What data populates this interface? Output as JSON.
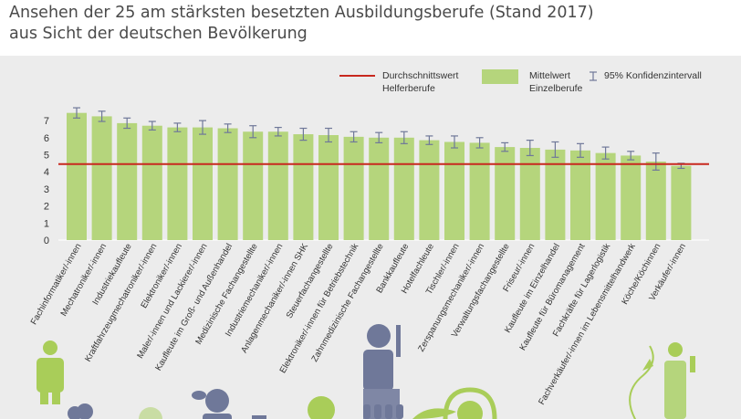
{
  "header": {
    "title_line1": "Ansehen der 25 am stärksten besetzten Ausbildungsberufe (Stand 2017)",
    "title_line2": "aus Sicht der deutschen Bevölkerung"
  },
  "legend": {
    "reference": {
      "line1": "Durchschnittswert",
      "line2": "Helferberufe"
    },
    "mean": {
      "line1": "Mittelwert",
      "line2": "Einzelberufe"
    },
    "ci": {
      "label": "95% Konfidenzintervall"
    }
  },
  "colors": {
    "bar": "#b5d57c",
    "reference_line": "#c8281e",
    "error_bar": "#6f7899",
    "panel_background": "#ececec",
    "text": "#333333",
    "icon_green": "#a9cd59",
    "icon_blue": "#6f7899"
  },
  "chart_data": {
    "type": "bar",
    "title": "Ansehen der 25 am stärksten besetzten Ausbildungsberufe (Stand 2017) aus Sicht der deutschen Bevölkerung",
    "xlabel": "",
    "ylabel": "",
    "ylim": [
      0,
      8
    ],
    "yticks": [
      0,
      1,
      2,
      3,
      4,
      5,
      6,
      7
    ],
    "grid": false,
    "legend_position": "top-right",
    "reference_line": {
      "name": "Durchschnittswert Helferberufe",
      "value": 4.45
    },
    "categories": [
      "Fachinformatiker/-innen",
      "Mechatroniker/-innen",
      "Industriekaufleute",
      "Kraftfahrzeugmechatroniker/-innen",
      "Elektroniker/-innen",
      "Maler/-innen und Lackierer/-innen",
      "Kaufleute im Groß- und Außenhandel",
      "Medizinische Fachangestellte",
      "Industriemechaniker/-innen",
      "Anlagenmechaniker/-innen SHK",
      "Steuerfachangestellte",
      "Elektroniker/-innen für Betriebstechnik",
      "Zahnmedizinische Fachangestellte",
      "Bankkaufleute",
      "Hotelfachleute",
      "Tischler/-innen",
      "Zerspanungsmechaniker/-innen",
      "Verwaltungsfachangestellte",
      "Friseur/-innen",
      "Kaufleute im Einzelhandel",
      "Kaufleute für Büromanagement",
      "Fachkräfte für Lagerlogistik",
      "Fachverkäufer/-innen im Lebensmittelhandwerk",
      "Köche/Köchinnen",
      "Verkäufer/-innen"
    ],
    "series": [
      {
        "name": "Mittelwert Einzelberufe",
        "values": [
          7.45,
          7.25,
          6.85,
          6.7,
          6.6,
          6.6,
          6.55,
          6.35,
          6.35,
          6.2,
          6.15,
          6.05,
          6.0,
          6.0,
          5.85,
          5.75,
          5.7,
          5.45,
          5.4,
          5.3,
          5.25,
          5.1,
          4.95,
          4.6,
          4.35
        ],
        "ci_low": [
          7.15,
          6.95,
          6.55,
          6.45,
          6.35,
          6.2,
          6.3,
          6.0,
          6.1,
          5.85,
          5.75,
          5.75,
          5.7,
          5.65,
          5.6,
          5.4,
          5.4,
          5.2,
          4.95,
          4.85,
          4.85,
          4.75,
          4.7,
          4.1,
          4.2
        ],
        "ci_high": [
          7.75,
          7.55,
          7.15,
          6.95,
          6.85,
          7.0,
          6.8,
          6.7,
          6.6,
          6.55,
          6.55,
          6.35,
          6.3,
          6.35,
          6.1,
          6.1,
          6.0,
          5.7,
          5.85,
          5.75,
          5.65,
          5.45,
          5.2,
          5.1,
          4.5
        ]
      }
    ]
  }
}
